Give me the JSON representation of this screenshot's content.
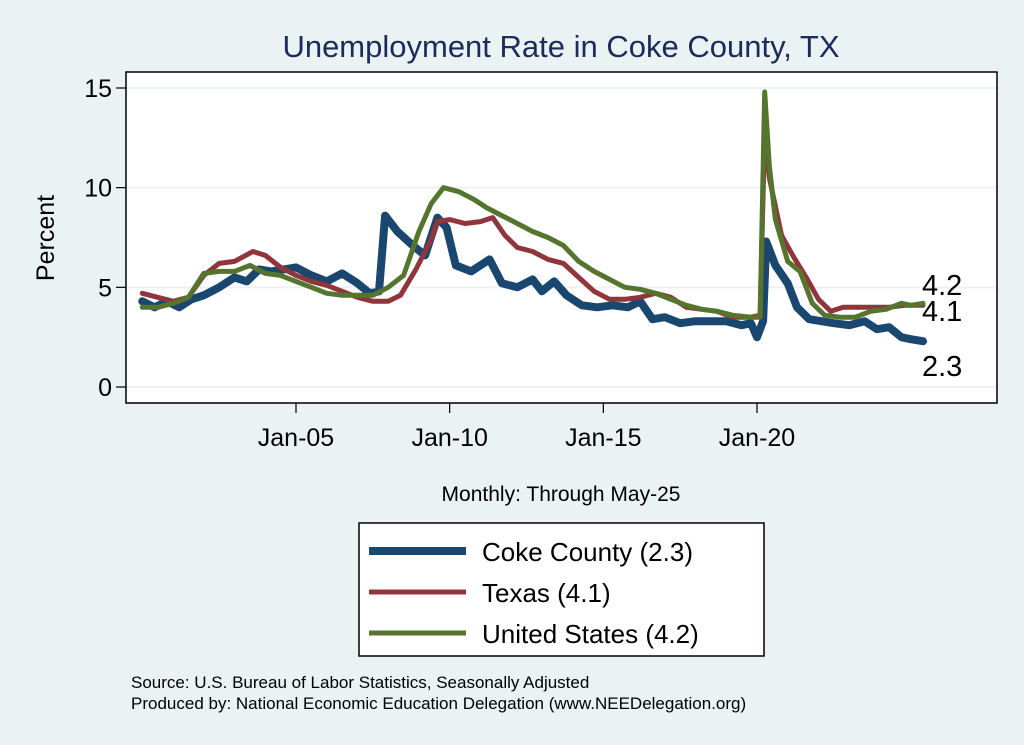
{
  "chart_data": {
    "type": "line",
    "title": "Unemployment Rate in Coke  County, TX",
    "xlabel": "Monthly: Through May-25",
    "ylabel": "Percent",
    "ylim": [
      0,
      15
    ],
    "yticks": [
      0,
      5,
      10,
      15
    ],
    "xlim_years": [
      2000.0,
      2025.4
    ],
    "xticks": [
      {
        "year": 2005,
        "label": "Jan-05"
      },
      {
        "year": 2010,
        "label": "Jan-10"
      },
      {
        "year": 2015,
        "label": "Jan-15"
      },
      {
        "year": 2020,
        "label": "Jan-20"
      }
    ],
    "grid": true,
    "legend_position": "bottom",
    "series": [
      {
        "name": "Coke  County",
        "legend_label": "Coke  County (2.3)",
        "last_value": "2.3",
        "color": "#1a476f",
        "points": [
          [
            2000.0,
            4.3
          ],
          [
            2000.4,
            4.0
          ],
          [
            2000.8,
            4.3
          ],
          [
            2001.2,
            4.0
          ],
          [
            2001.6,
            4.4
          ],
          [
            2002.0,
            4.6
          ],
          [
            2002.5,
            5.0
          ],
          [
            2003.0,
            5.5
          ],
          [
            2003.4,
            5.3
          ],
          [
            2003.8,
            5.9
          ],
          [
            2004.2,
            5.8
          ],
          [
            2004.6,
            5.9
          ],
          [
            2005.0,
            6.0
          ],
          [
            2005.5,
            5.6
          ],
          [
            2006.0,
            5.3
          ],
          [
            2006.5,
            5.7
          ],
          [
            2007.0,
            5.2
          ],
          [
            2007.4,
            4.7
          ],
          [
            2007.7,
            4.8
          ],
          [
            2007.9,
            8.6
          ],
          [
            2008.3,
            7.8
          ],
          [
            2008.8,
            7.1
          ],
          [
            2009.2,
            6.6
          ],
          [
            2009.6,
            8.5
          ],
          [
            2009.9,
            8.0
          ],
          [
            2010.2,
            6.1
          ],
          [
            2010.7,
            5.8
          ],
          [
            2011.3,
            6.4
          ],
          [
            2011.7,
            5.2
          ],
          [
            2012.2,
            5.0
          ],
          [
            2012.7,
            5.4
          ],
          [
            2013.0,
            4.8
          ],
          [
            2013.4,
            5.3
          ],
          [
            2013.8,
            4.6
          ],
          [
            2014.3,
            4.1
          ],
          [
            2014.8,
            4.0
          ],
          [
            2015.3,
            4.1
          ],
          [
            2015.8,
            4.0
          ],
          [
            2016.2,
            4.3
          ],
          [
            2016.6,
            3.4
          ],
          [
            2017.0,
            3.5
          ],
          [
            2017.5,
            3.2
          ],
          [
            2018.0,
            3.3
          ],
          [
            2018.5,
            3.3
          ],
          [
            2019.0,
            3.3
          ],
          [
            2019.5,
            3.1
          ],
          [
            2019.8,
            3.2
          ],
          [
            2020.0,
            2.5
          ],
          [
            2020.2,
            3.3
          ],
          [
            2020.3,
            7.3
          ],
          [
            2020.6,
            6.1
          ],
          [
            2021.0,
            5.2
          ],
          [
            2021.3,
            4.0
          ],
          [
            2021.7,
            3.4
          ],
          [
            2022.1,
            3.3
          ],
          [
            2022.5,
            3.2
          ],
          [
            2023.0,
            3.1
          ],
          [
            2023.5,
            3.3
          ],
          [
            2023.9,
            2.9
          ],
          [
            2024.3,
            3.0
          ],
          [
            2024.7,
            2.5
          ],
          [
            2025.0,
            2.4
          ],
          [
            2025.4,
            2.3
          ]
        ]
      },
      {
        "name": "Texas",
        "legend_label": "Texas (4.1)",
        "last_value": "4.1",
        "color": "#90353b",
        "points": [
          [
            2000.0,
            4.7
          ],
          [
            2000.5,
            4.5
          ],
          [
            2001.0,
            4.3
          ],
          [
            2001.5,
            4.5
          ],
          [
            2002.0,
            5.6
          ],
          [
            2002.5,
            6.2
          ],
          [
            2003.0,
            6.3
          ],
          [
            2003.6,
            6.8
          ],
          [
            2004.0,
            6.6
          ],
          [
            2004.5,
            6.0
          ],
          [
            2005.0,
            5.6
          ],
          [
            2005.5,
            5.3
          ],
          [
            2006.0,
            5.1
          ],
          [
            2006.5,
            4.8
          ],
          [
            2007.0,
            4.5
          ],
          [
            2007.5,
            4.3
          ],
          [
            2008.0,
            4.3
          ],
          [
            2008.4,
            4.6
          ],
          [
            2008.9,
            5.9
          ],
          [
            2009.4,
            7.4
          ],
          [
            2009.6,
            8.3
          ],
          [
            2010.0,
            8.4
          ],
          [
            2010.5,
            8.2
          ],
          [
            2011.0,
            8.3
          ],
          [
            2011.4,
            8.5
          ],
          [
            2011.8,
            7.6
          ],
          [
            2012.2,
            7.0
          ],
          [
            2012.7,
            6.8
          ],
          [
            2013.2,
            6.4
          ],
          [
            2013.7,
            6.2
          ],
          [
            2014.2,
            5.5
          ],
          [
            2014.7,
            4.8
          ],
          [
            2015.2,
            4.4
          ],
          [
            2015.7,
            4.4
          ],
          [
            2016.2,
            4.5
          ],
          [
            2016.7,
            4.7
          ],
          [
            2017.2,
            4.5
          ],
          [
            2017.7,
            4.0
          ],
          [
            2018.2,
            3.9
          ],
          [
            2018.7,
            3.8
          ],
          [
            2019.2,
            3.5
          ],
          [
            2019.8,
            3.5
          ],
          [
            2020.1,
            3.6
          ],
          [
            2020.25,
            12.9
          ],
          [
            2020.4,
            10.5
          ],
          [
            2020.8,
            7.6
          ],
          [
            2021.2,
            6.5
          ],
          [
            2021.6,
            5.5
          ],
          [
            2022.0,
            4.4
          ],
          [
            2022.4,
            3.8
          ],
          [
            2022.8,
            4.0
          ],
          [
            2023.3,
            4.0
          ],
          [
            2023.8,
            4.0
          ],
          [
            2024.3,
            4.0
          ],
          [
            2024.8,
            4.1
          ],
          [
            2025.4,
            4.1
          ]
        ]
      },
      {
        "name": "United States",
        "legend_label": "United States (4.2)",
        "last_value": "4.2",
        "color": "#55752f",
        "points": [
          [
            2000.0,
            4.0
          ],
          [
            2000.5,
            4.0
          ],
          [
            2001.0,
            4.2
          ],
          [
            2001.5,
            4.5
          ],
          [
            2002.0,
            5.7
          ],
          [
            2002.5,
            5.8
          ],
          [
            2003.0,
            5.8
          ],
          [
            2003.5,
            6.1
          ],
          [
            2004.0,
            5.7
          ],
          [
            2004.5,
            5.6
          ],
          [
            2005.0,
            5.3
          ],
          [
            2005.5,
            5.0
          ],
          [
            2006.0,
            4.7
          ],
          [
            2006.5,
            4.6
          ],
          [
            2007.0,
            4.6
          ],
          [
            2007.5,
            4.6
          ],
          [
            2008.0,
            5.0
          ],
          [
            2008.5,
            5.6
          ],
          [
            2009.0,
            7.8
          ],
          [
            2009.4,
            9.2
          ],
          [
            2009.8,
            10.0
          ],
          [
            2010.3,
            9.8
          ],
          [
            2010.8,
            9.4
          ],
          [
            2011.2,
            9.0
          ],
          [
            2011.7,
            8.6
          ],
          [
            2012.2,
            8.2
          ],
          [
            2012.7,
            7.8
          ],
          [
            2013.2,
            7.5
          ],
          [
            2013.7,
            7.1
          ],
          [
            2014.2,
            6.3
          ],
          [
            2014.7,
            5.8
          ],
          [
            2015.2,
            5.4
          ],
          [
            2015.7,
            5.0
          ],
          [
            2016.2,
            4.9
          ],
          [
            2016.7,
            4.7
          ],
          [
            2017.2,
            4.4
          ],
          [
            2017.7,
            4.1
          ],
          [
            2018.2,
            3.9
          ],
          [
            2018.7,
            3.8
          ],
          [
            2019.2,
            3.6
          ],
          [
            2019.8,
            3.5
          ],
          [
            2020.1,
            3.5
          ],
          [
            2020.25,
            14.8
          ],
          [
            2020.4,
            11.1
          ],
          [
            2020.6,
            8.4
          ],
          [
            2021.0,
            6.3
          ],
          [
            2021.4,
            5.8
          ],
          [
            2021.8,
            4.2
          ],
          [
            2022.2,
            3.6
          ],
          [
            2022.7,
            3.5
          ],
          [
            2023.2,
            3.5
          ],
          [
            2023.7,
            3.8
          ],
          [
            2024.2,
            3.9
          ],
          [
            2024.7,
            4.2
          ],
          [
            2025.0,
            4.1
          ],
          [
            2025.4,
            4.2
          ]
        ]
      }
    ],
    "end_labels": [
      "4.2",
      "4.1",
      "2.3"
    ]
  },
  "footer": {
    "source": "Source: U.S. Bureau of Labor Statistics, Seasonally Adjusted",
    "produced_by": "Produced by: National Economic Education Delegation (www.NEEDelegation.org)"
  }
}
